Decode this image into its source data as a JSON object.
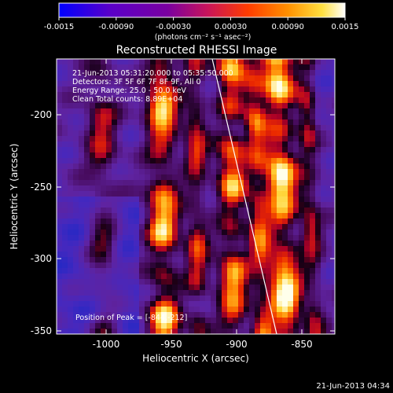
{
  "colorbar": {
    "ticks": [
      "-0.0015",
      "-0.00090",
      "-0.00030",
      "0.00030",
      "0.00090",
      "0.0015"
    ],
    "unit_label": "(photons cm⁻² s⁻¹ asec⁻²)",
    "colors": [
      "#0000ff",
      "#5a00c8",
      "#7a00a0",
      "#c8145a",
      "#ff3c00",
      "#ff9000",
      "#ffe040",
      "#ffffff"
    ]
  },
  "image": {
    "title": "Reconstructed RHESSI Image",
    "info_lines": [
      "21-Jun-2013 05:31:20.000 to 05:35:50.000",
      "Detectors: 3F 5F 6F 7F 8F 9F, All 0",
      "Energy Range: 25.0 - 50.0 keV",
      "Clean    Total counts: 8.89E+04"
    ],
    "peak_text": "Position of Peak = [-844,-212]",
    "timestamp": "21-Jun-2013 04:34"
  },
  "axes": {
    "xlabel": "Heliocentric X (arcsec)",
    "ylabel": "Heliocentric Y (arcsec)",
    "xticks": [
      "-1000",
      "-950",
      "-900",
      "-850"
    ],
    "yticks": [
      "-200",
      "-250",
      "-300",
      "-350"
    ],
    "xrange": [
      -1030,
      -835
    ],
    "yrange": [
      -355,
      -167
    ]
  }
}
